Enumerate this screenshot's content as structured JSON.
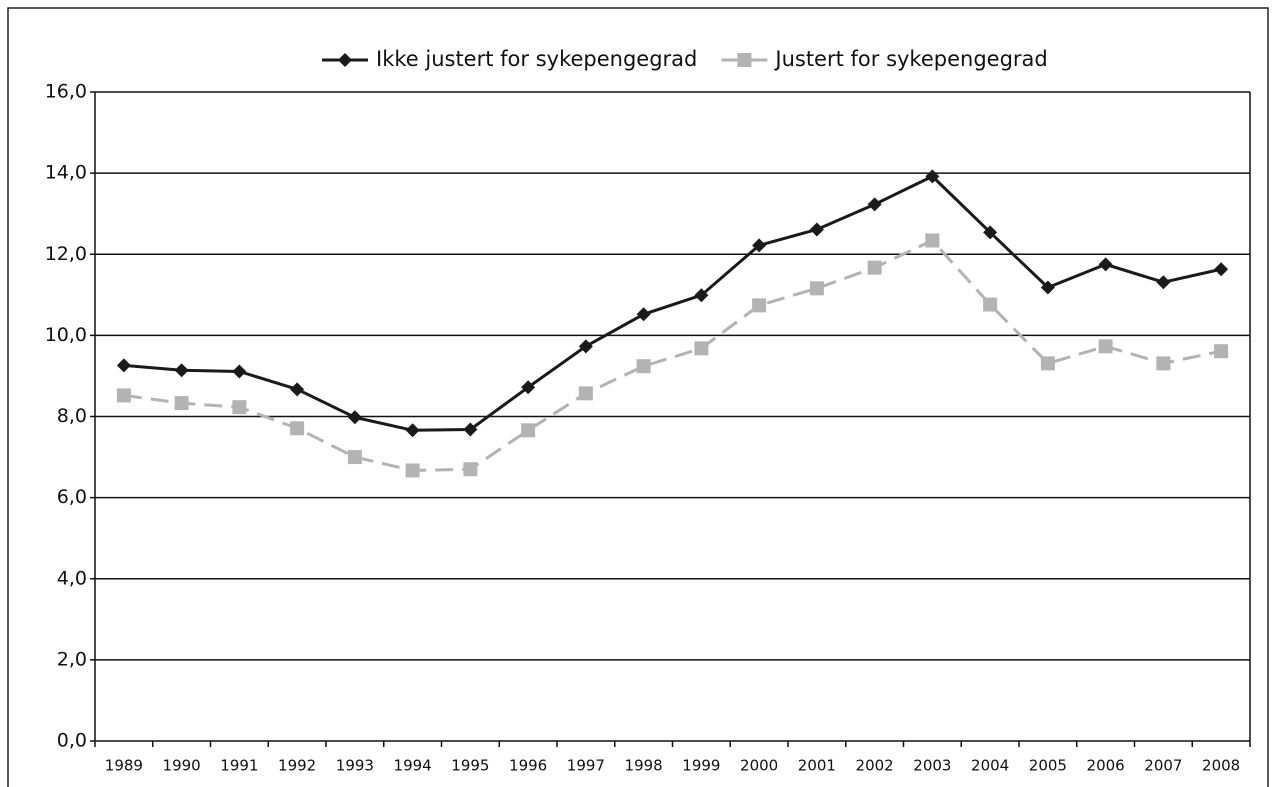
{
  "chart_data": {
    "type": "line",
    "categories": [
      "1989",
      "1990",
      "1991",
      "1992",
      "1993",
      "1994",
      "1995",
      "1996",
      "1997",
      "1998",
      "1999",
      "2000",
      "2001",
      "2002",
      "2003",
      "2004",
      "2005",
      "2006",
      "2007",
      "2008"
    ],
    "series": [
      {
        "name": "Ikke justert for sykepengegrad",
        "color": "#1a1a1a",
        "marker": "diamond",
        "dashed": false,
        "values": [
          9.26,
          9.14,
          9.11,
          8.67,
          7.98,
          7.66,
          7.68,
          8.72,
          9.73,
          10.52,
          10.99,
          12.22,
          12.61,
          13.23,
          13.92,
          12.54,
          11.18,
          11.75,
          11.31,
          11.63
        ]
      },
      {
        "name": "Justert for sykepengegrad",
        "color": "#b3b3b3",
        "marker": "square",
        "dashed": true,
        "values": [
          8.52,
          8.33,
          8.23,
          7.71,
          7.0,
          6.67,
          6.7,
          7.66,
          8.57,
          9.24,
          9.68,
          10.74,
          11.16,
          11.67,
          12.34,
          10.76,
          9.31,
          9.73,
          9.31,
          9.61
        ]
      }
    ],
    "ylim": [
      0,
      16
    ],
    "yticks": [
      {
        "value": 0,
        "label": "0,0"
      },
      {
        "value": 2,
        "label": "2,0"
      },
      {
        "value": 4,
        "label": "4,0"
      },
      {
        "value": 6,
        "label": "6,0"
      },
      {
        "value": 8,
        "label": "8,0"
      },
      {
        "value": 10,
        "label": "10,0"
      },
      {
        "value": 12,
        "label": "12,0"
      },
      {
        "value": 14,
        "label": "14,0"
      },
      {
        "value": 16,
        "label": "16,0"
      }
    ],
    "grid": true,
    "legend": "top"
  }
}
